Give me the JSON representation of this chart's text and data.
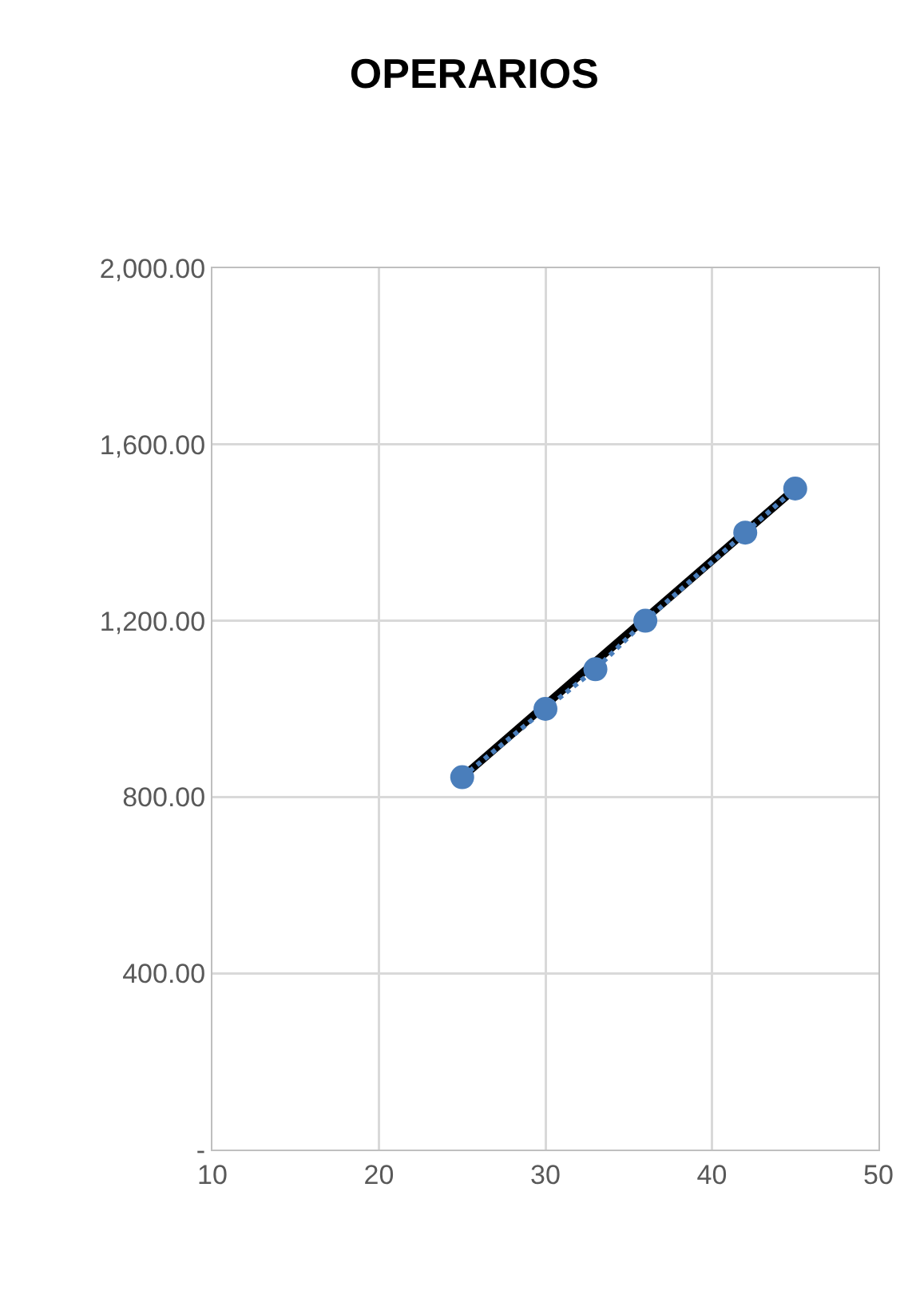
{
  "chart_data": {
    "type": "line",
    "title": "OPERARIOS",
    "series": [
      {
        "color": "#4a7ebb",
        "x": [
          25,
          30,
          33,
          36,
          42,
          45
        ],
        "values": [
          845,
          1000,
          1090,
          1200,
          1400,
          1500
        ],
        "marker": "circle",
        "line_style": "dotted"
      },
      {
        "type": "line",
        "color": "#000000",
        "x": [
          25,
          45
        ],
        "values": [
          845,
          1500
        ],
        "marker": "none",
        "line_style": "solid"
      }
    ],
    "xlim": [
      10,
      50
    ],
    "xticks": [
      10,
      20,
      30,
      40,
      50
    ],
    "ylim": [
      0,
      2000
    ],
    "yticks": [
      {
        "value": 0,
        "label": "-"
      },
      {
        "value": 400,
        "label": "400.00"
      },
      {
        "value": 800,
        "label": "800.00"
      },
      {
        "value": 1200,
        "label": "1,200.00"
      },
      {
        "value": 1600,
        "label": "1,600.00"
      },
      {
        "value": 2000,
        "label": "2,000.00"
      }
    ],
    "grid": true
  }
}
